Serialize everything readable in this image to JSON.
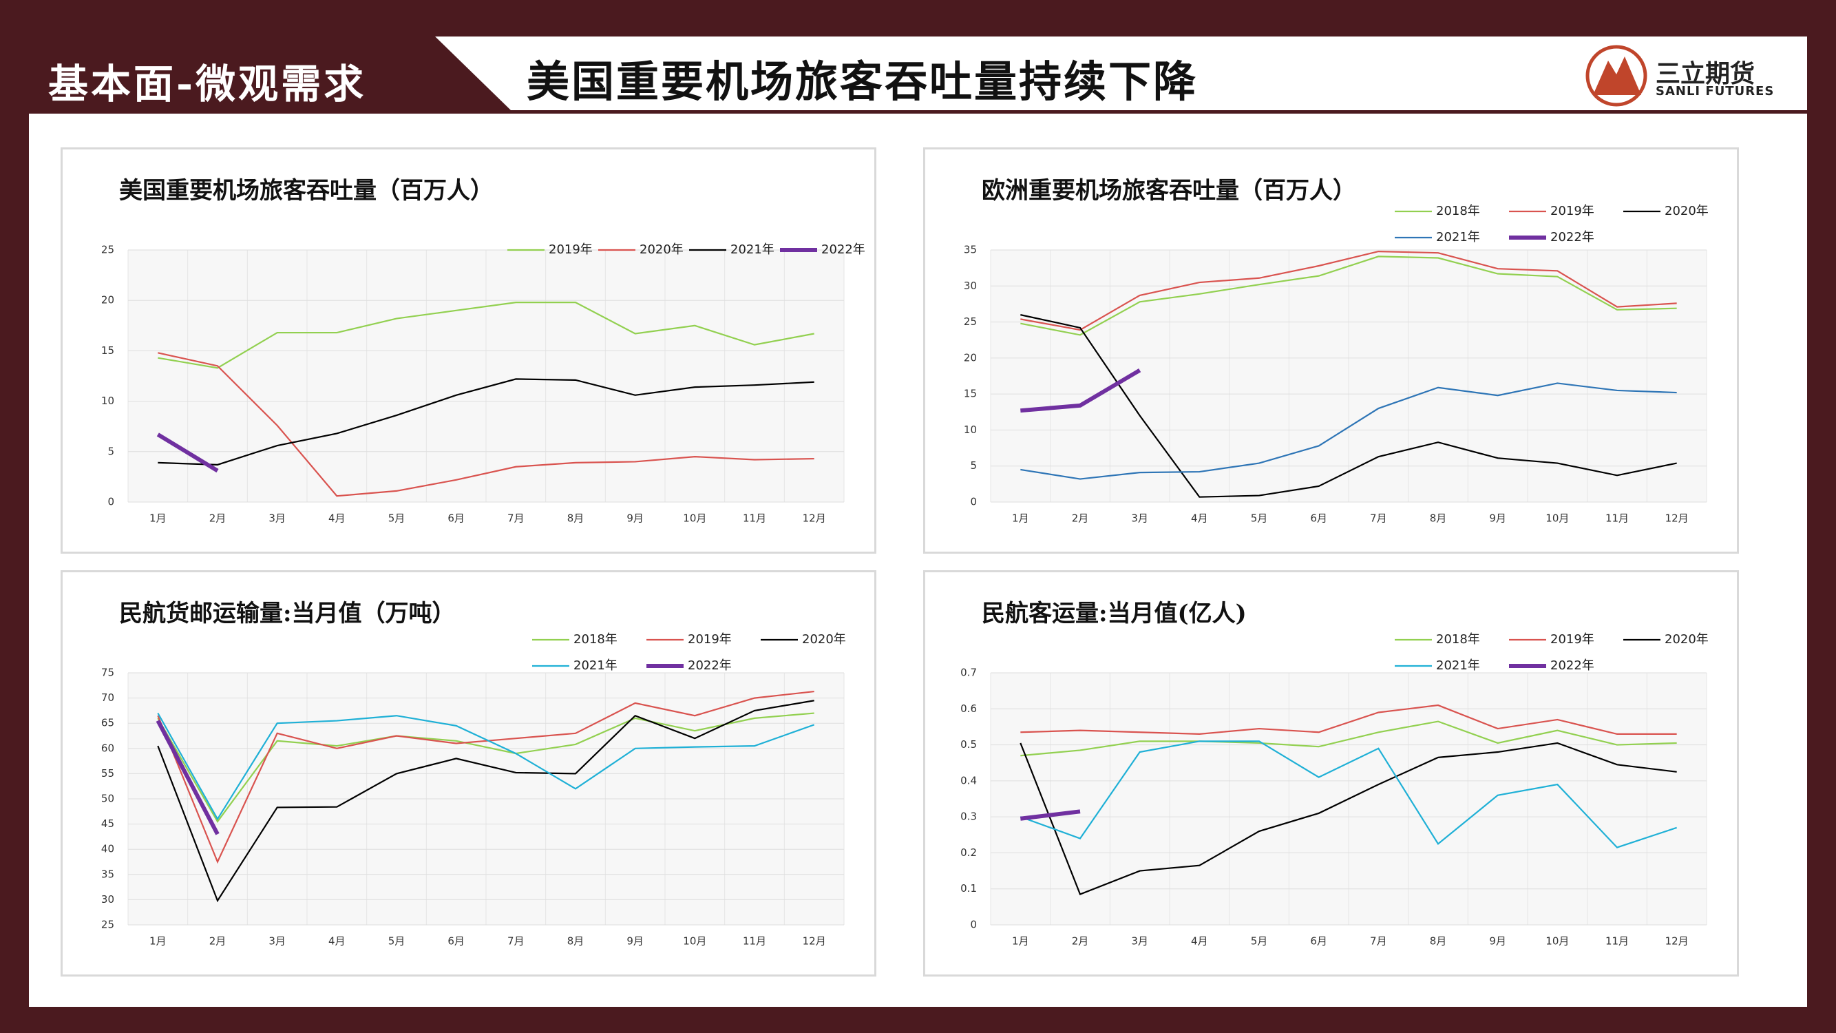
{
  "header": {
    "section": "基本面-微观需求",
    "title": "美国重要机场旅客吞吐量持续下降",
    "logo_name": "三立期货",
    "logo_sub": "SANLI FUTURES"
  },
  "chart_data": [
    {
      "type": "line",
      "title": "美国重要机场旅客吞吐量（百万人）",
      "categories": [
        "1月",
        "2月",
        "3月",
        "4月",
        "5月",
        "6月",
        "7月",
        "8月",
        "9月",
        "10月",
        "11月",
        "12月"
      ],
      "ylim": [
        0,
        25
      ],
      "yticks": [
        0,
        5,
        10,
        15,
        20,
        25
      ],
      "grid": true,
      "series": [
        {
          "name": "2019年",
          "color": "#92d050",
          "values": [
            14.3,
            13.3,
            16.8,
            16.8,
            18.2,
            19.0,
            19.8,
            19.8,
            16.7,
            17.5,
            15.6,
            16.7
          ]
        },
        {
          "name": "2020年",
          "color": "#d9534f",
          "values": [
            14.8,
            13.5,
            7.6,
            0.6,
            1.1,
            2.2,
            3.5,
            3.9,
            4.0,
            4.5,
            4.2,
            4.3
          ]
        },
        {
          "name": "2021年",
          "color": "#000000",
          "values": [
            3.9,
            3.7,
            5.6,
            6.8,
            8.6,
            10.6,
            12.2,
            12.1,
            10.6,
            11.4,
            11.6,
            11.9
          ]
        },
        {
          "name": "2022年",
          "color": "#7030a0",
          "values": [
            6.7,
            3.1,
            null,
            null,
            null,
            null,
            null,
            null,
            null,
            null,
            null,
            null
          ]
        }
      ]
    },
    {
      "type": "line",
      "title": "欧洲重要机场旅客吞吐量（百万人）",
      "categories": [
        "1月",
        "2月",
        "3月",
        "4月",
        "5月",
        "6月",
        "7月",
        "8月",
        "9月",
        "10月",
        "11月",
        "12月"
      ],
      "ylim": [
        0,
        35
      ],
      "yticks": [
        0,
        5,
        10,
        15,
        20,
        25,
        30,
        35
      ],
      "grid": true,
      "series": [
        {
          "name": "2018年",
          "color": "#92d050",
          "values": [
            24.8,
            23.2,
            27.8,
            28.9,
            30.2,
            31.4,
            34.1,
            33.9,
            31.7,
            31.3,
            26.7,
            26.9
          ]
        },
        {
          "name": "2019年",
          "color": "#d9534f",
          "values": [
            25.4,
            23.9,
            28.7,
            30.5,
            31.1,
            32.8,
            34.8,
            34.6,
            32.4,
            32.1,
            27.1,
            27.6
          ]
        },
        {
          "name": "2020年",
          "color": "#000000",
          "values": [
            26.0,
            24.2,
            12.0,
            0.7,
            0.9,
            2.2,
            6.3,
            8.3,
            6.1,
            5.4,
            3.7,
            5.4
          ]
        },
        {
          "name": "2021年",
          "color": "#2e75b6",
          "values": [
            4.5,
            3.2,
            4.1,
            4.2,
            5.4,
            7.8,
            13.0,
            15.9,
            14.8,
            16.5,
            15.5,
            15.2
          ]
        },
        {
          "name": "2022年",
          "color": "#7030a0",
          "values": [
            12.7,
            13.4,
            18.3,
            null,
            null,
            null,
            null,
            null,
            null,
            null,
            null,
            null
          ]
        }
      ]
    },
    {
      "type": "line",
      "title": "民航货邮运输量:当月值（万吨）",
      "categories": [
        "1月",
        "2月",
        "3月",
        "4月",
        "5月",
        "6月",
        "7月",
        "8月",
        "9月",
        "10月",
        "11月",
        "12月"
      ],
      "ylim": [
        25,
        75
      ],
      "yticks": [
        25,
        30,
        35,
        40,
        45,
        50,
        55,
        60,
        65,
        70,
        75
      ],
      "grid": true,
      "series": [
        {
          "name": "2018年",
          "color": "#92d050",
          "values": [
            66.0,
            45.5,
            61.5,
            60.5,
            62.5,
            61.5,
            59.0,
            60.8,
            66.0,
            63.5,
            66.0,
            67.0
          ]
        },
        {
          "name": "2019年",
          "color": "#d9534f",
          "values": [
            66.5,
            37.5,
            63.0,
            60.0,
            62.5,
            61.0,
            62.0,
            63.0,
            69.0,
            66.5,
            70.0,
            71.3
          ]
        },
        {
          "name": "2020年",
          "color": "#000000",
          "values": [
            60.5,
            29.8,
            48.3,
            48.4,
            55.0,
            58.0,
            55.2,
            55.0,
            66.5,
            62.0,
            67.5,
            69.5
          ]
        },
        {
          "name": "2021年",
          "color": "#1fb0d6",
          "values": [
            67.0,
            46.0,
            65.0,
            65.5,
            66.5,
            64.5,
            59.0,
            52.0,
            60.0,
            60.3,
            60.5,
            64.7
          ]
        },
        {
          "name": "2022年",
          "color": "#7030a0",
          "values": [
            65.5,
            43.0,
            null,
            null,
            null,
            null,
            null,
            null,
            null,
            null,
            null,
            null
          ]
        }
      ]
    },
    {
      "type": "line",
      "title": "民航客运量:当月值(亿人)",
      "categories": [
        "1月",
        "2月",
        "3月",
        "4月",
        "5月",
        "6月",
        "7月",
        "8月",
        "9月",
        "10月",
        "11月",
        "12月"
      ],
      "ylim": [
        0,
        0.7
      ],
      "yticks": [
        0,
        0.1,
        0.2,
        0.3,
        0.4,
        0.5,
        0.6,
        0.7
      ],
      "grid": true,
      "series": [
        {
          "name": "2018年",
          "color": "#92d050",
          "values": [
            0.47,
            0.485,
            0.51,
            0.51,
            0.505,
            0.495,
            0.535,
            0.565,
            0.505,
            0.54,
            0.5,
            0.505
          ]
        },
        {
          "name": "2019年",
          "color": "#d9534f",
          "values": [
            0.535,
            0.54,
            0.535,
            0.53,
            0.545,
            0.535,
            0.59,
            0.61,
            0.545,
            0.57,
            0.53,
            0.53
          ]
        },
        {
          "name": "2020年",
          "color": "#000000",
          "values": [
            0.505,
            0.085,
            0.15,
            0.165,
            0.26,
            0.31,
            0.39,
            0.465,
            0.48,
            0.505,
            0.445,
            0.425
          ]
        },
        {
          "name": "2021年",
          "color": "#1fb0d6",
          "values": [
            0.3,
            0.24,
            0.48,
            0.51,
            0.51,
            0.41,
            0.49,
            0.225,
            0.36,
            0.39,
            0.215,
            0.27
          ]
        },
        {
          "name": "2022年",
          "color": "#7030a0",
          "values": [
            0.295,
            0.315,
            null,
            null,
            null,
            null,
            null,
            null,
            null,
            null,
            null,
            null
          ]
        }
      ]
    }
  ]
}
